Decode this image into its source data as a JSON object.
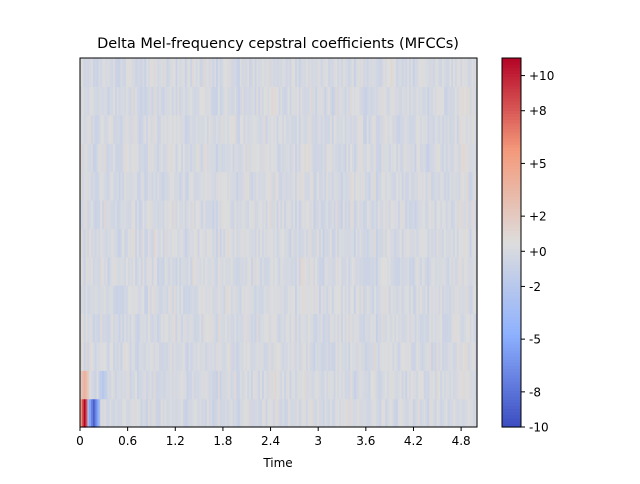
{
  "chart_data": {
    "type": "heatmap",
    "title": "Delta Mel-frequency cepstral coefficients (MFCCs)",
    "xlabel": "Time",
    "ylabel": "",
    "xlim": [
      0,
      5.0
    ],
    "x_ticks": [
      {
        "value": 0,
        "label": "0"
      },
      {
        "value": 0.6,
        "label": "0.6"
      },
      {
        "value": 1.2,
        "label": "1.2"
      },
      {
        "value": 1.8,
        "label": "1.8"
      },
      {
        "value": 2.4,
        "label": "2.4"
      },
      {
        "value": 3.0,
        "label": "3"
      },
      {
        "value": 3.6,
        "label": "3.6"
      },
      {
        "value": 4.2,
        "label": "4.2"
      },
      {
        "value": 4.8,
        "label": "4.8"
      }
    ],
    "colormap": "coolwarm",
    "colorbar": {
      "range": [
        -10,
        11
      ],
      "ticks": [
        {
          "value": 10,
          "label": "+10"
        },
        {
          "value": 8,
          "label": "+8"
        },
        {
          "value": 5,
          "label": "+5"
        },
        {
          "value": 2,
          "label": "+2"
        },
        {
          "value": 0,
          "label": "+0"
        },
        {
          "value": -2,
          "label": "-2"
        },
        {
          "value": -5,
          "label": "-5"
        },
        {
          "value": -8,
          "label": "-8"
        },
        {
          "value": -10,
          "label": "-10"
        }
      ]
    },
    "n_coefficients": 13,
    "n_frames": 216,
    "notable_values": [
      {
        "coefficient": 0,
        "time": 0.05,
        "value": 11
      },
      {
        "coefficient": 0,
        "time": 0.17,
        "value": -9
      },
      {
        "coefficient": 1,
        "time": 0.05,
        "value": 4
      },
      {
        "coefficient": 1,
        "time": 0.3,
        "value": -2
      }
    ],
    "background_range": [
      -2,
      2
    ]
  }
}
